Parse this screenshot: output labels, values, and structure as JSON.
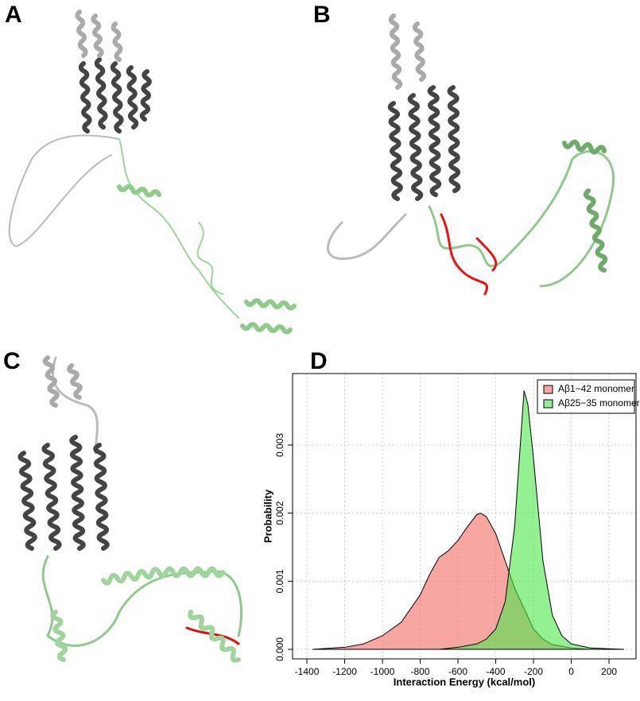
{
  "panels": [
    "A",
    "B",
    "C",
    "D"
  ],
  "chart_data": {
    "type": "area",
    "xlabel": "Interaction Energy (kcal/mol)",
    "ylabel": "Probability",
    "xlim": [
      -1476,
      343
    ],
    "ylim": [
      -0.00014,
      0.00405
    ],
    "xticks": [
      -1400,
      -1200,
      -1000,
      -800,
      -600,
      -400,
      -200,
      0,
      200
    ],
    "yticks": [
      {
        "value": 0,
        "label": "0.000"
      },
      0.001,
      0.002,
      0.003
    ],
    "grid": true,
    "legend": "top-right",
    "series": [
      {
        "name": "Aβ1−42 monomer",
        "color": "#f26b63",
        "x": [
          -1370,
          -1200,
          -1100,
          -1000,
          -900,
          -800,
          -750,
          -700,
          -650,
          -600,
          -550,
          -500,
          -480,
          -450,
          -400,
          -350,
          -300,
          -250,
          -200,
          -150,
          -100,
          0,
          100,
          280
        ],
        "values": [
          0,
          3e-05,
          8e-05,
          0.0002,
          0.0004,
          0.0008,
          0.0011,
          0.00135,
          0.00145,
          0.0016,
          0.0018,
          0.00198,
          0.002,
          0.00195,
          0.0017,
          0.0013,
          0.0009,
          0.0006,
          0.0003,
          0.00015,
          7e-05,
          2e-05,
          0,
          0
        ]
      },
      {
        "name": "Aβ25−35 monomer",
        "color": "#4de84a",
        "x": [
          -1370,
          -700,
          -600,
          -500,
          -450,
          -400,
          -350,
          -300,
          -270,
          -250,
          -230,
          -200,
          -150,
          -100,
          -50,
          0,
          100,
          280
        ],
        "values": [
          0,
          0,
          3e-05,
          8e-05,
          0.00015,
          0.0003,
          0.0007,
          0.0018,
          0.003,
          0.0038,
          0.0036,
          0.0028,
          0.0013,
          0.0005,
          0.0002,
          8e-05,
          2e-05,
          0
        ]
      }
    ]
  }
}
